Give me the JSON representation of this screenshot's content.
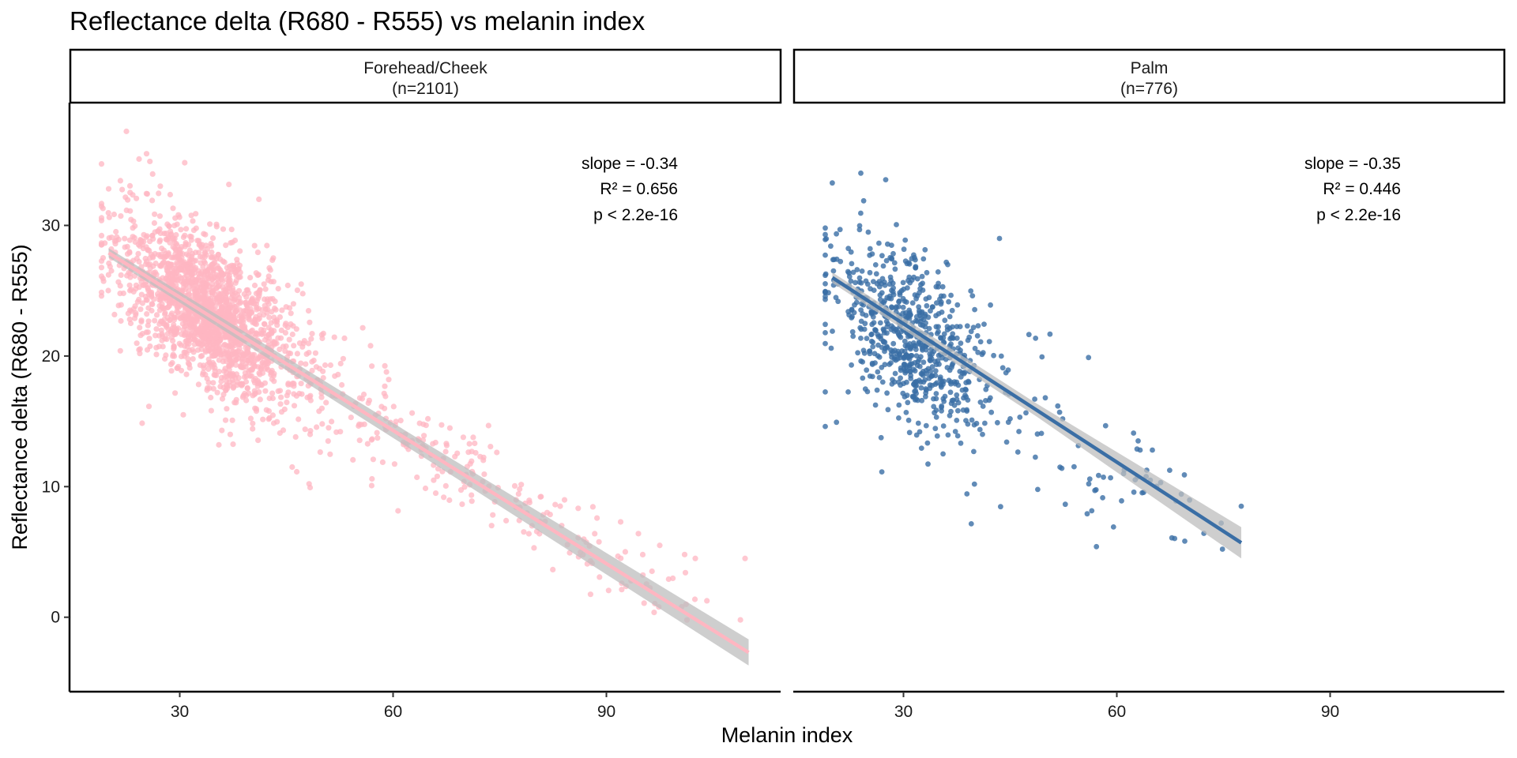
{
  "chart_data": {
    "type": "scatter",
    "title": "Reflectance delta (R680 - R555) vs melanin index",
    "xlabel": "Melanin index",
    "ylabel": "Reflectance delta (R680 - R555)",
    "xlim": [
      14.5,
      114.5
    ],
    "ylim": [
      -5.7,
      39.4
    ],
    "x_ticks": [
      30,
      60,
      90
    ],
    "y_ticks": [
      0,
      10,
      20,
      30
    ],
    "grid": false,
    "panels": [
      {
        "strip": "Forehead/Cheek",
        "strip_n": "(n=2101)",
        "color": "#FFB6C1",
        "fit_color": "#FFB6C1",
        "fit": {
          "x": [
            20,
            110
          ],
          "y": [
            27.9,
            -2.7
          ]
        },
        "band_halfwidth": [
          0.35,
          0.6,
          1.0
        ],
        "annotation": {
          "slope": "slope = -0.34",
          "r2": "R² = 0.656",
          "p": "p < 2.2e-16"
        },
        "points_sample": [
          {
            "x": 22.5,
            "y": 37.2
          },
          {
            "x": 20.0,
            "y": 32.8
          },
          {
            "x": 25.8,
            "y": 34.9
          },
          {
            "x": 30.7,
            "y": 34.8
          },
          {
            "x": 30.5,
            "y": 15.5
          },
          {
            "x": 35.5,
            "y": 13.2
          },
          {
            "x": 66.0,
            "y": 9.5
          },
          {
            "x": 83.5,
            "y": 8.5
          },
          {
            "x": 92.0,
            "y": 7.3
          },
          {
            "x": 94.5,
            "y": 6.4
          },
          {
            "x": 97.5,
            "y": 5.5
          },
          {
            "x": 101.0,
            "y": 4.8
          },
          {
            "x": 102.5,
            "y": 4.5
          },
          {
            "x": 109.5,
            "y": 4.5
          }
        ],
        "cloud": {
          "n": 2101,
          "x_center": 34.0,
          "x_spread": 6.0,
          "x_tail_max": 110,
          "tail_fraction": 0.13,
          "intercept": 35.0,
          "slope": -0.34,
          "residual_sd": 2.8
        }
      },
      {
        "strip": "Palm",
        "strip_n": "(n=776)",
        "color": "#3A6EA5",
        "fit_color": "#3A6EA5",
        "fit": {
          "x": [
            20,
            77.5
          ],
          "y": [
            26.0,
            5.7
          ]
        },
        "band_halfwidth": [
          0.4,
          0.5,
          1.2
        ],
        "annotation": {
          "slope": "slope = -0.35",
          "r2": "R² = 0.446",
          "p": "p < 2.2e-16"
        },
        "points_sample": [
          {
            "x": 24.0,
            "y": 34.0
          },
          {
            "x": 27.5,
            "y": 33.5
          },
          {
            "x": 19.0,
            "y": 29.3
          },
          {
            "x": 20.0,
            "y": 21.9
          },
          {
            "x": 43.5,
            "y": 29.0
          },
          {
            "x": 63.0,
            "y": 13.5
          },
          {
            "x": 65.0,
            "y": 12.8
          },
          {
            "x": 69.5,
            "y": 10.9
          },
          {
            "x": 77.5,
            "y": 8.5
          }
        ],
        "cloud": {
          "n": 776,
          "x_center": 31.5,
          "x_spread": 5.5,
          "x_tail_max": 78,
          "tail_fraction": 0.08,
          "intercept": 32.0,
          "slope": -0.35,
          "residual_sd": 3.2
        }
      }
    ]
  }
}
